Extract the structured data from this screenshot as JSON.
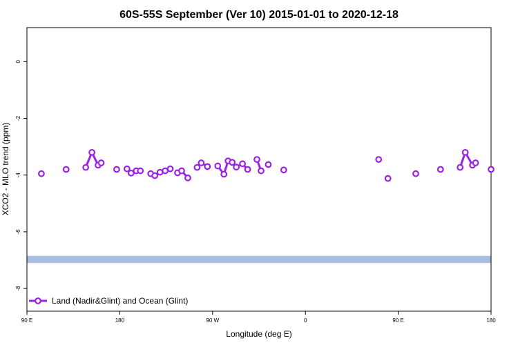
{
  "chart_data": {
    "type": "line",
    "title": "60S-55S September (Ver 10)   2015-01-01 to 2020-12-18",
    "xlabel": "Longitude (deg E)",
    "ylabel": "XCO2 - MLO trend (ppm)",
    "xlim": [
      90,
      540
    ],
    "ylim": [
      -8.8,
      1.2
    ],
    "x_ticks": [
      {
        "value": 90,
        "label": "90 E"
      },
      {
        "value": 180,
        "label": "180"
      },
      {
        "value": 270,
        "label": "90 W"
      },
      {
        "value": 360,
        "label": "0"
      },
      {
        "value": 450,
        "label": "90 E"
      },
      {
        "value": 540,
        "label": "180"
      }
    ],
    "y_ticks": [
      {
        "value": 0,
        "label": "0"
      },
      {
        "value": -2,
        "label": "-2"
      },
      {
        "value": -4,
        "label": "-4"
      },
      {
        "value": -6,
        "label": "-6"
      },
      {
        "value": -8,
        "label": "-8"
      }
    ],
    "band": {
      "y_from": -7.1,
      "y_to": -6.85,
      "color": "#a8bde0"
    },
    "series": [
      {
        "name": "Land (Nadir&Glint) and Ocean (Glint)",
        "color": "#9a22e6",
        "segments": [
          [
            [
              104,
              -3.95
            ]
          ],
          [
            [
              128,
              -3.8
            ]
          ],
          [
            [
              147,
              -3.73
            ],
            [
              153,
              -3.2
            ],
            [
              159,
              -3.65
            ],
            [
              162,
              -3.57
            ]
          ],
          [
            [
              177,
              -3.8
            ]
          ],
          [
            [
              187,
              -3.78
            ],
            [
              191,
              -3.93
            ],
            [
              196,
              -3.85
            ],
            [
              200,
              -3.85
            ]
          ],
          [
            [
              210,
              -3.95
            ],
            [
              214,
              -4.02
            ],
            [
              219,
              -3.9
            ],
            [
              224,
              -3.85
            ],
            [
              229,
              -3.78
            ]
          ],
          [
            [
              236,
              -3.92
            ],
            [
              240,
              -3.85
            ],
            [
              246,
              -4.1
            ]
          ],
          [
            [
              255,
              -3.73
            ],
            [
              259,
              -3.57
            ],
            [
              265,
              -3.7
            ]
          ],
          [
            [
              275,
              -3.68
            ],
            [
              281,
              -3.97
            ],
            [
              285,
              -3.5
            ],
            [
              289,
              -3.55
            ],
            [
              293,
              -3.72
            ],
            [
              299,
              -3.6
            ],
            [
              304,
              -3.8
            ]
          ],
          [
            [
              313,
              -3.45
            ],
            [
              317,
              -3.85
            ]
          ],
          [
            [
              324,
              -3.63
            ]
          ],
          [
            [
              339,
              -3.82
            ]
          ],
          [
            [
              431,
              -3.45
            ]
          ],
          [
            [
              440,
              -4.12
            ]
          ],
          [
            [
              467,
              -3.95
            ]
          ],
          [
            [
              491,
              -3.8
            ]
          ],
          [
            [
              510,
              -3.73
            ],
            [
              515,
              -3.2
            ],
            [
              522,
              -3.65
            ],
            [
              525,
              -3.57
            ]
          ],
          [
            [
              540,
              -3.8
            ]
          ]
        ]
      }
    ],
    "legend": {
      "position": "bottom-left"
    }
  }
}
